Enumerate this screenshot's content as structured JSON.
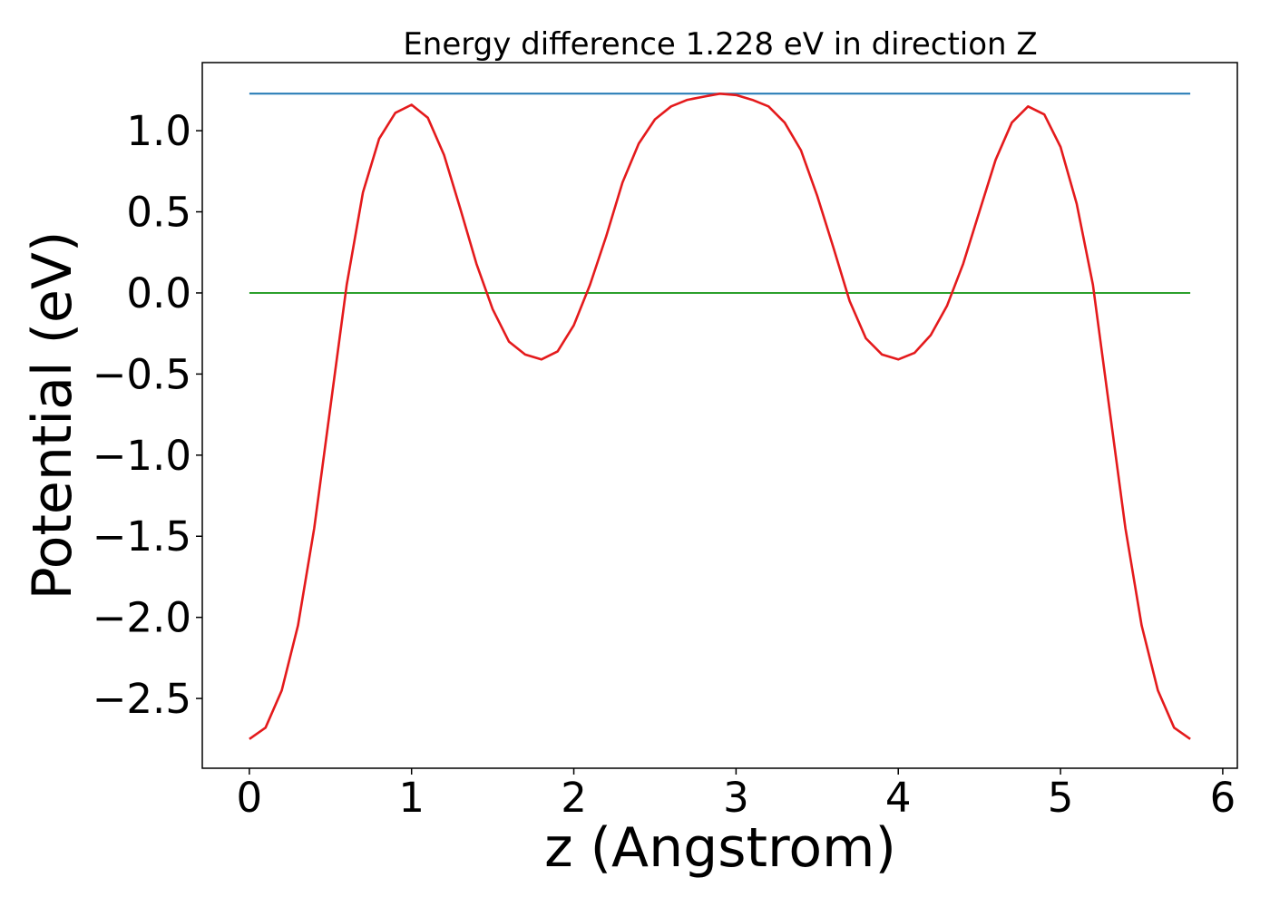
{
  "chart_data": {
    "type": "line",
    "title": "Energy difference 1.228 eV in direction Z",
    "xlabel": "z (Angstrom)",
    "ylabel": "Potential (eV)",
    "xlim": [
      -0.29,
      6.09
    ],
    "ylim": [
      -2.93,
      1.42
    ],
    "x_ticks": [
      0,
      1,
      2,
      3,
      4,
      5,
      6
    ],
    "x_tick_labels": [
      "0",
      "1",
      "2",
      "3",
      "4",
      "5",
      "6"
    ],
    "y_ticks": [
      1.0,
      0.5,
      0.0,
      -0.5,
      -1.0,
      -1.5,
      -2.0,
      -2.5
    ],
    "y_tick_labels": [
      "1.0",
      "0.5",
      "0.0",
      "−0.5",
      "−1.0",
      "−1.5",
      "−2.0",
      "−2.5"
    ],
    "grid": false,
    "series": [
      {
        "color": "#1f77b4",
        "x": [
          0,
          5.8
        ],
        "y": [
          1.228,
          1.228
        ]
      },
      {
        "color": "#2ca02c",
        "x": [
          0,
          5.8
        ],
        "y": [
          0.0,
          0.0
        ]
      },
      {
        "color": "#e41a1c",
        "x": [
          0,
          0.1,
          0.2,
          0.3,
          0.4,
          0.5,
          0.6,
          0.7,
          0.8,
          0.9,
          1.0,
          1.1,
          1.2,
          1.3,
          1.4,
          1.5,
          1.6,
          1.7,
          1.8,
          1.9,
          2.0,
          2.1,
          2.2,
          2.3,
          2.4,
          2.5,
          2.6,
          2.7,
          2.8,
          2.9,
          3.0,
          3.1,
          3.2,
          3.3,
          3.4,
          3.5,
          3.6,
          3.7,
          3.8,
          3.9,
          4.0,
          4.1,
          4.2,
          4.3,
          4.4,
          4.5,
          4.6,
          4.7,
          4.8,
          4.9,
          5.0,
          5.1,
          5.2,
          5.3,
          5.4,
          5.5,
          5.6,
          5.7,
          5.8
        ],
        "y": [
          -2.75,
          -2.68,
          -2.45,
          -2.05,
          -1.45,
          -0.7,
          0.05,
          0.62,
          0.95,
          1.11,
          1.16,
          1.08,
          0.85,
          0.52,
          0.18,
          -0.1,
          -0.3,
          -0.38,
          -0.41,
          -0.36,
          -0.2,
          0.05,
          0.35,
          0.68,
          0.92,
          1.07,
          1.15,
          1.19,
          1.21,
          1.228,
          1.22,
          1.19,
          1.15,
          1.05,
          0.88,
          0.6,
          0.28,
          -0.05,
          -0.28,
          -0.38,
          -0.41,
          -0.37,
          -0.26,
          -0.08,
          0.18,
          0.5,
          0.82,
          1.05,
          1.15,
          1.1,
          0.9,
          0.55,
          0.05,
          -0.7,
          -1.45,
          -2.05,
          -2.45,
          -2.68,
          -2.75
        ]
      }
    ]
  }
}
